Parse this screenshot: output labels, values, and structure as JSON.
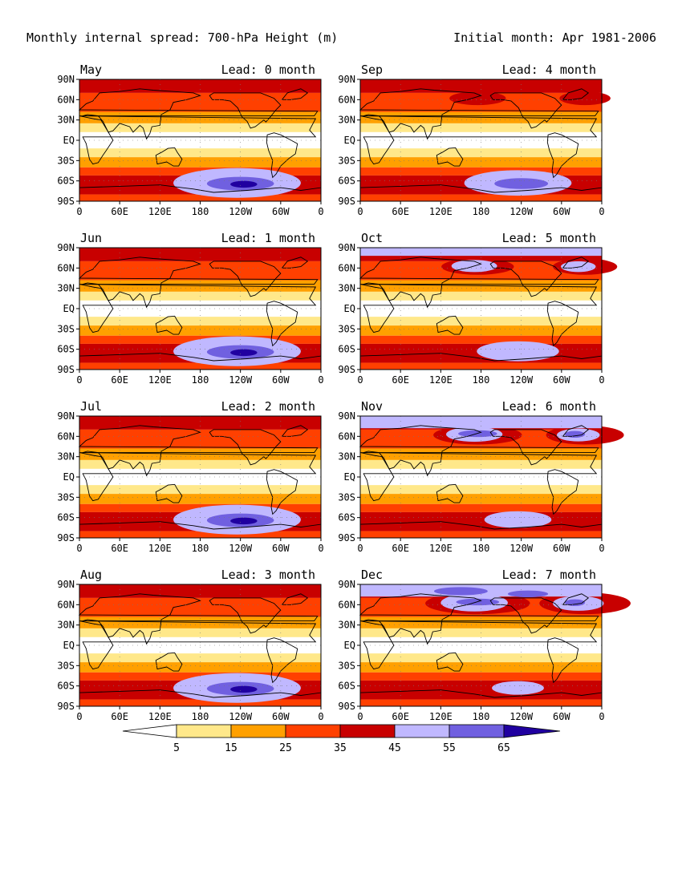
{
  "header": {
    "title": "Monthly internal spread: 700-hPa Height (m)",
    "initial": "Initial month: Apr 1981-2006"
  },
  "axes": {
    "lat_ticks": [
      "90N",
      "60N",
      "30N",
      "EQ",
      "30S",
      "60S",
      "90S"
    ],
    "lon_ticks_a": [
      "0",
      "60E",
      "120E",
      "180",
      "120W",
      "60W",
      "0"
    ],
    "lon_ticks_b": [
      "0",
      "60E",
      "120E",
      "180",
      "120W",
      "60W",
      "0"
    ]
  },
  "panels": [
    {
      "month": "May",
      "lead": "Lead: 0 month",
      "intensity": 0
    },
    {
      "month": "Sep",
      "lead": "Lead: 4 month",
      "intensity": 1
    },
    {
      "month": "Jun",
      "lead": "Lead: 1 month",
      "intensity": 0
    },
    {
      "month": "Oct",
      "lead": "Lead: 5 month",
      "intensity": 2
    },
    {
      "month": "Jul",
      "lead": "Lead: 2 month",
      "intensity": 0
    },
    {
      "month": "Nov",
      "lead": "Lead: 6 month",
      "intensity": 3
    },
    {
      "month": "Aug",
      "lead": "Lead: 3 month",
      "intensity": 0
    },
    {
      "month": "Dec",
      "lead": "Lead: 7 month",
      "intensity": 4
    }
  ],
  "colorbar": {
    "labels": [
      "5",
      "15",
      "25",
      "35",
      "45",
      "55",
      "65"
    ],
    "colors": [
      "#ffffff",
      "#ffe88a",
      "#ffa000",
      "#ff4000",
      "#c80000",
      "#c0b8ff",
      "#7060e0",
      "#2000a0"
    ]
  }
}
